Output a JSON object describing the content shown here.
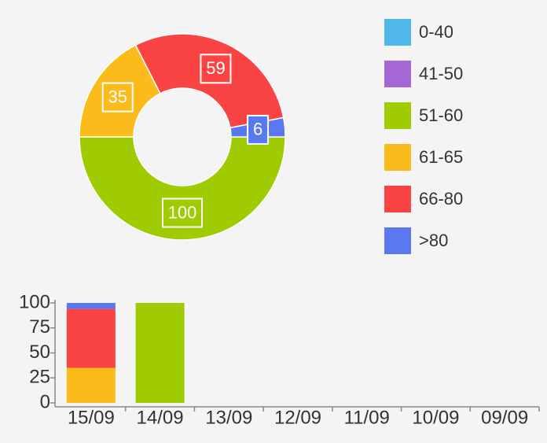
{
  "chart_data": [
    {
      "type": "donut",
      "categories": [
        "0-40",
        "41-50",
        "51-60",
        "61-65",
        "66-80",
        ">80"
      ],
      "values": [
        0,
        0,
        100,
        35,
        59,
        6
      ],
      "colors": [
        "#4fb8e8",
        "#a566d6",
        "#9fcc00",
        "#fbbb1b",
        "#fa4444",
        "#5a78f0"
      ],
      "legend": "right"
    },
    {
      "type": "stacked-bar",
      "categories": [
        "15/09",
        "14/09",
        "13/09",
        "12/09",
        "11/09",
        "10/09",
        "09/09"
      ],
      "series": [
        {
          "color": "#4fb8e8",
          "values": [
            0,
            0,
            0,
            0,
            0,
            0,
            0
          ]
        },
        {
          "color": "#a566d6",
          "values": [
            0,
            0,
            0,
            0,
            0,
            0,
            0
          ]
        },
        {
          "color": "#9fcc00",
          "values": [
            0,
            100,
            0,
            0,
            0,
            0,
            0
          ]
        },
        {
          "color": "#fbbb1b",
          "values": [
            35,
            0,
            0,
            0,
            0,
            0,
            0
          ]
        },
        {
          "color": "#fa4444",
          "values": [
            59,
            0,
            0,
            0,
            0,
            0,
            0
          ]
        },
        {
          "color": "#5a78f0",
          "values": [
            6,
            0,
            0,
            0,
            0,
            0,
            0
          ]
        }
      ],
      "ylim": [
        0,
        100
      ],
      "yticks": [
        0,
        25,
        50,
        75,
        100
      ]
    }
  ]
}
